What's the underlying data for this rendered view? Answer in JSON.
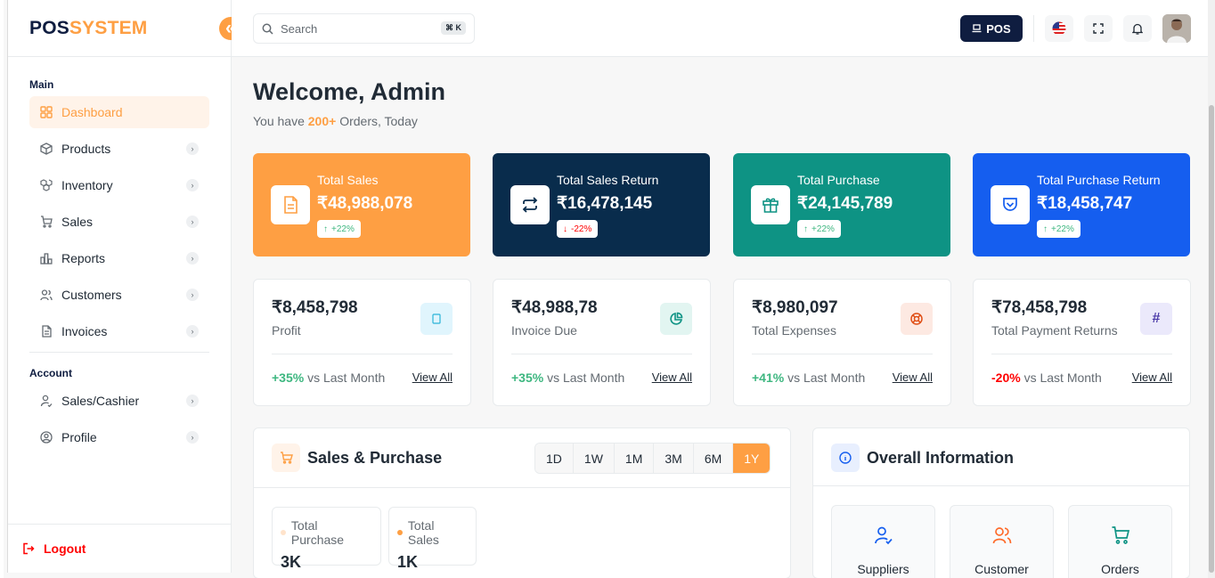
{
  "brand": {
    "part1": "POS",
    "part2": "SYSTEM"
  },
  "sidebar": {
    "main_title": "Main",
    "main_items": [
      {
        "label": "Dashboard",
        "icon": "grid-icon",
        "active": true
      },
      {
        "label": "Products",
        "icon": "box-icon"
      },
      {
        "label": "Inventory",
        "icon": "boxes-icon"
      },
      {
        "label": "Sales",
        "icon": "cart-icon"
      },
      {
        "label": "Reports",
        "icon": "bar-chart-icon"
      },
      {
        "label": "Customers",
        "icon": "users-icon"
      },
      {
        "label": "Invoices",
        "icon": "file-icon"
      }
    ],
    "account_title": "Account",
    "account_items": [
      {
        "label": "Sales/Cashier",
        "icon": "user-check-icon"
      },
      {
        "label": "Profile",
        "icon": "user-circle-icon"
      }
    ],
    "logout": "Logout"
  },
  "header": {
    "search_placeholder": "Search",
    "shortcut": "⌘ K",
    "pos_label": "POS"
  },
  "welcome": {
    "title": "Welcome, Admin",
    "prefix": "You have ",
    "highlight": "200+",
    "suffix": " Orders, Today"
  },
  "cards": [
    {
      "label": "Total Sales",
      "value": "₹48,988,078",
      "badge": "+22%",
      "dir": "up",
      "bg": "#fe9f43"
    },
    {
      "label": "Total Sales Return",
      "value": "₹16,478,145",
      "badge": "-22%",
      "dir": "down",
      "bg": "#092c4c"
    },
    {
      "label": "Total Purchase",
      "value": "₹24,145,789",
      "badge": "+22%",
      "dir": "up",
      "bg": "#0e9384"
    },
    {
      "label": "Total Purchase Return",
      "value": "₹18,458,747",
      "badge": "+22%",
      "dir": "up",
      "bg": "#155eef"
    }
  ],
  "stats": [
    {
      "value": "₹8,458,798",
      "label": "Profit",
      "change": "+35%",
      "change_text": " vs Last Month",
      "link": "View All",
      "positive": true
    },
    {
      "value": "₹48,988,78",
      "label": "Invoice Due",
      "change": "+35%",
      "change_text": " vs Last Month",
      "link": "View All",
      "positive": true
    },
    {
      "value": "₹8,980,097",
      "label": "Total Expenses",
      "change": "+41%",
      "change_text": " vs Last Month",
      "link": "View All",
      "positive": true
    },
    {
      "value": "₹78,458,798",
      "label": "Total Payment Returns",
      "change": "-20%",
      "change_text": " vs Last Month",
      "link": "View All",
      "positive": false,
      "icon_text": "#"
    }
  ],
  "sales_purchase": {
    "title": "Sales & Purchase",
    "ranges": [
      "1D",
      "1W",
      "1M",
      "3M",
      "6M",
      "1Y"
    ],
    "active_range": "1Y",
    "legend": [
      {
        "label": "Total Purchase",
        "value": "3K",
        "color": "#ffe3cb"
      },
      {
        "label": "Total Sales",
        "value": "1K",
        "color": "#fe9f43"
      }
    ]
  },
  "overall": {
    "title": "Overall Information",
    "items": [
      {
        "label": "Suppliers",
        "icon": "user-check-icon",
        "color": "#155eef"
      },
      {
        "label": "Customer",
        "icon": "users-icon",
        "color": "#fe9f43"
      },
      {
        "label": "Orders",
        "icon": "cart-icon",
        "color": "#0e9384"
      }
    ]
  }
}
